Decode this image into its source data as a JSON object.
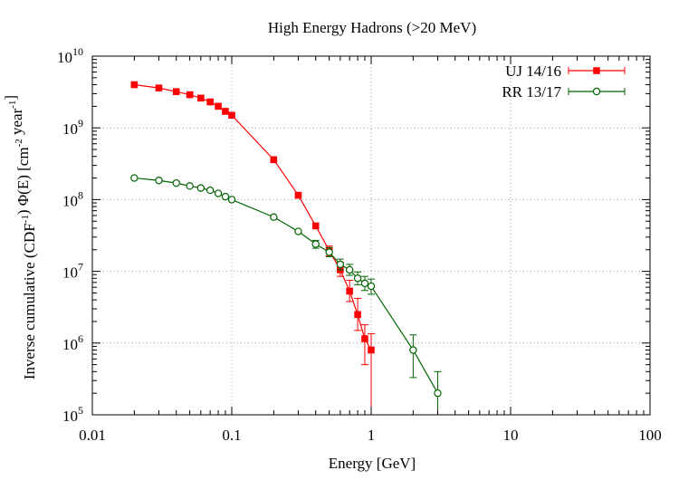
{
  "chart_data": {
    "type": "scatter",
    "title": "High Energy Hadrons (>20 MeV)",
    "xlabel": "Energy [GeV]",
    "ylabel": "Inverse cumulative (CDF⁻¹) Φ(E) [cm⁻² year⁻¹]",
    "xscale": "log",
    "yscale": "log",
    "xlim": [
      0.01,
      100
    ],
    "ylim": [
      100000,
      10000000000
    ],
    "grid": true,
    "legend_position": "top-right",
    "x_ticks": [
      {
        "value": 0.01,
        "label": "0.01"
      },
      {
        "value": 0.1,
        "label": "0.1"
      },
      {
        "value": 1,
        "label": "1"
      },
      {
        "value": 10,
        "label": "10"
      },
      {
        "value": 100,
        "label": "100"
      }
    ],
    "y_ticks": [
      {
        "value": 100000,
        "base": "10",
        "exp": "5"
      },
      {
        "value": 1000000,
        "base": "10",
        "exp": "6"
      },
      {
        "value": 10000000,
        "base": "10",
        "exp": "7"
      },
      {
        "value": 100000000,
        "base": "10",
        "exp": "8"
      },
      {
        "value": 1000000000,
        "base": "10",
        "exp": "9"
      },
      {
        "value": 10000000000,
        "base": "10",
        "exp": "10"
      }
    ],
    "series": [
      {
        "name": "UJ 14/16",
        "color": "#ff0000",
        "marker": "filled-square",
        "points": [
          {
            "x": 0.02,
            "y": 4000000000
          },
          {
            "x": 0.03,
            "y": 3600000000
          },
          {
            "x": 0.04,
            "y": 3200000000
          },
          {
            "x": 0.05,
            "y": 2900000000
          },
          {
            "x": 0.06,
            "y": 2600000000
          },
          {
            "x": 0.07,
            "y": 2300000000
          },
          {
            "x": 0.08,
            "y": 2000000000
          },
          {
            "x": 0.09,
            "y": 1700000000
          },
          {
            "x": 0.1,
            "y": 1500000000
          },
          {
            "x": 0.2,
            "y": 360000000
          },
          {
            "x": 0.3,
            "y": 115000000
          },
          {
            "x": 0.4,
            "y": 43000000
          },
          {
            "x": 0.5,
            "y": 19500000,
            "ylo": 16500000,
            "yhi": 22500000
          },
          {
            "x": 0.6,
            "y": 10500000,
            "ylo": 8500000,
            "yhi": 13500000
          },
          {
            "x": 0.7,
            "y": 5300000,
            "ylo": 3800000,
            "yhi": 7500000
          },
          {
            "x": 0.8,
            "y": 2500000,
            "ylo": 1500000,
            "yhi": 4200000
          },
          {
            "x": 0.9,
            "y": 1150000,
            "ylo": 500000,
            "yhi": 1800000
          },
          {
            "x": 1.0,
            "y": 800000,
            "ylo": 100000,
            "yhi": 1350000
          }
        ]
      },
      {
        "name": "RR 13/17",
        "color": "#006400",
        "marker": "open-circle",
        "points": [
          {
            "x": 0.02,
            "y": 200000000
          },
          {
            "x": 0.03,
            "y": 185000000
          },
          {
            "x": 0.04,
            "y": 170000000
          },
          {
            "x": 0.05,
            "y": 155000000
          },
          {
            "x": 0.06,
            "y": 145000000
          },
          {
            "x": 0.07,
            "y": 135000000
          },
          {
            "x": 0.08,
            "y": 122000000
          },
          {
            "x": 0.09,
            "y": 110000000
          },
          {
            "x": 0.1,
            "y": 100000000
          },
          {
            "x": 0.2,
            "y": 57000000
          },
          {
            "x": 0.3,
            "y": 36000000
          },
          {
            "x": 0.4,
            "y": 24000000,
            "ylo": 21000000,
            "yhi": 27000000
          },
          {
            "x": 0.5,
            "y": 18500000,
            "ylo": 16000000,
            "yhi": 21500000
          },
          {
            "x": 0.6,
            "y": 12500000,
            "ylo": 10500000,
            "yhi": 14800000
          },
          {
            "x": 0.7,
            "y": 10500000,
            "ylo": 8800000,
            "yhi": 12500000
          },
          {
            "x": 0.8,
            "y": 8000000,
            "ylo": 6500000,
            "yhi": 9800000
          },
          {
            "x": 0.9,
            "y": 6800000,
            "ylo": 5400000,
            "yhi": 8500000
          },
          {
            "x": 1.0,
            "y": 6200000,
            "ylo": 4800000,
            "yhi": 7800000
          },
          {
            "x": 2.0,
            "y": 800000,
            "ylo": 330000,
            "yhi": 1300000
          },
          {
            "x": 3.0,
            "y": 200000,
            "ylo": 100000,
            "yhi": 400000
          }
        ]
      }
    ]
  }
}
